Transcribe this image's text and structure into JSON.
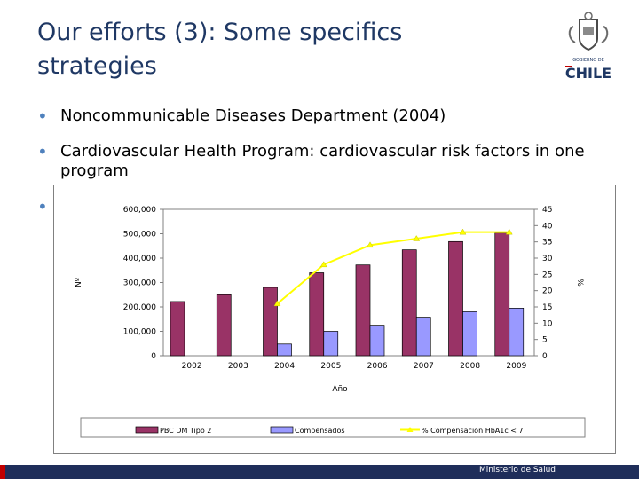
{
  "slide": {
    "title": "Our efforts (3): Some specifics strategies",
    "bullets": [
      "Noncommunicable Diseases Department (2004)",
      "Cardiovascular Health Program: cardiovascular risk factors in one program",
      ""
    ]
  },
  "logo": {
    "top_text": "GOBIERNO DE",
    "name": "CHILE",
    "blue": "#1f3864",
    "red": "#c00000"
  },
  "footer": {
    "text": "Ministerio de Salud",
    "bar_color": "#1f2e5a"
  },
  "chart_data": {
    "type": "bar",
    "categories": [
      "2002",
      "2003",
      "2004",
      "2005",
      "2006",
      "2007",
      "2008",
      "2009"
    ],
    "xlabel": "Año",
    "ylabel_left": "Nº",
    "ylabel_right": "%",
    "ylim_left": [
      0,
      600000
    ],
    "ylim_right": [
      0,
      45
    ],
    "left_ticks": [
      "0",
      "100,000",
      "200,000",
      "300,000",
      "400,000",
      "500,000",
      "600,000"
    ],
    "right_ticks": [
      "0",
      "5",
      "10",
      "15",
      "20",
      "25",
      "30",
      "35",
      "40",
      "45"
    ],
    "series": [
      {
        "name": "PBC DM  Tipo 2",
        "kind": "bar",
        "axis": "left",
        "color": "#993366",
        "values": [
          222000,
          250000,
          280000,
          340000,
          372000,
          434000,
          468000,
          504000
        ]
      },
      {
        "name": "Compensados",
        "kind": "bar",
        "axis": "left",
        "color": "#9999ff",
        "values": [
          null,
          null,
          48000,
          100000,
          125000,
          158000,
          180000,
          195000
        ]
      },
      {
        "name": "% Compensacion HbA1c < 7",
        "kind": "line",
        "axis": "right",
        "color": "#ffff00",
        "values": [
          null,
          null,
          16,
          28,
          34,
          36,
          38,
          38
        ]
      }
    ],
    "legend_position": "bottom",
    "grid": false
  }
}
